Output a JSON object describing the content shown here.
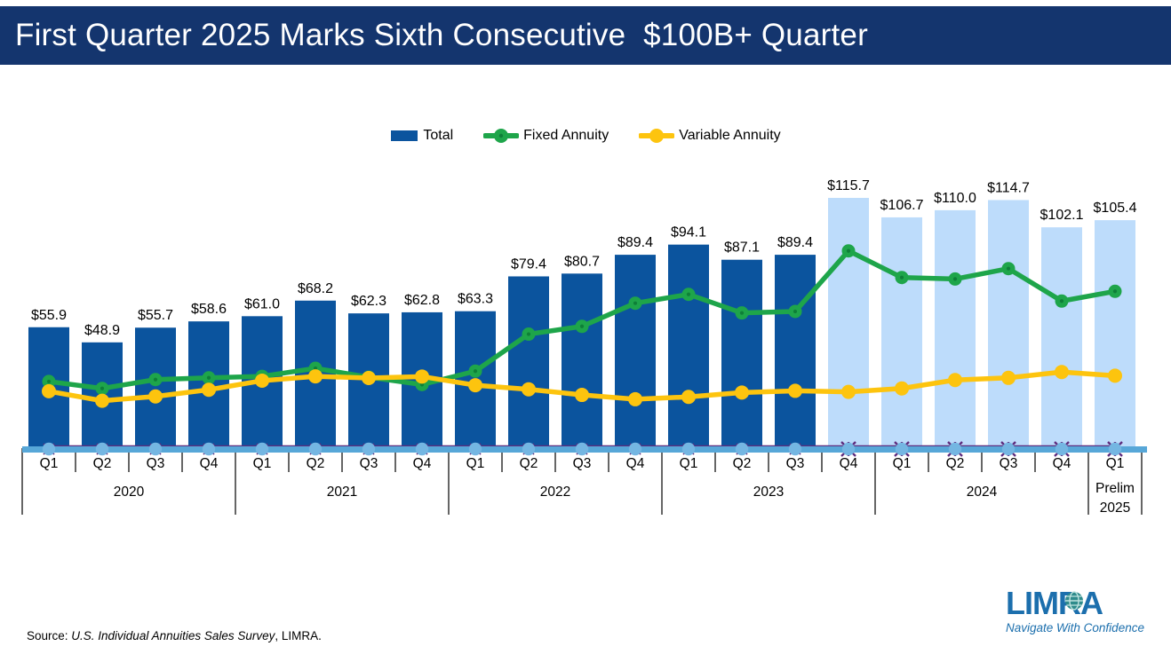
{
  "title_bar": {
    "title": "First Quarter 2025 Marks Sixth Consecutive  $100B+ Quarter"
  },
  "legend": {
    "items": [
      {
        "label": "Total",
        "color": "#0b549e",
        "marker": "bar-swatch"
      },
      {
        "label": "Fixed Annuity",
        "color": "#1ea54a",
        "marker": "line-dot"
      },
      {
        "label": "Variable Annuity",
        "color": "#fdc40e",
        "marker": "line-dot"
      }
    ]
  },
  "chart_data": {
    "type": "bar",
    "subtype": "bar+line combo, quarterly time series",
    "unit": "US$ billions",
    "ylim": [
      0,
      120
    ],
    "gridlines": false,
    "legend_position": "top-center",
    "x_groups": [
      {
        "label": "2020",
        "label_lines": [
          "2020"
        ],
        "quarters": [
          "Q1",
          "Q2",
          "Q3",
          "Q4"
        ]
      },
      {
        "label": "2021",
        "label_lines": [
          "2021"
        ],
        "quarters": [
          "Q1",
          "Q2",
          "Q3",
          "Q4"
        ]
      },
      {
        "label": "2022",
        "label_lines": [
          "2022"
        ],
        "quarters": [
          "Q1",
          "Q2",
          "Q3",
          "Q4"
        ]
      },
      {
        "label": "2023",
        "label_lines": [
          "2023"
        ],
        "quarters": [
          "Q1",
          "Q2",
          "Q3",
          "Q4"
        ]
      },
      {
        "label": "2024",
        "label_lines": [
          "2024"
        ],
        "quarters": [
          "Q1",
          "Q2",
          "Q3",
          "Q4"
        ]
      },
      {
        "label": "Prelim 2025",
        "label_lines": [
          "Prelim",
          "2025"
        ],
        "quarters": [
          "Q1"
        ]
      }
    ],
    "bars": {
      "name": "Total",
      "values": [
        55.9,
        48.9,
        55.7,
        58.6,
        61.0,
        68.2,
        62.3,
        62.8,
        63.3,
        79.4,
        80.7,
        89.4,
        94.1,
        87.1,
        89.4,
        115.7,
        106.7,
        110.0,
        114.7,
        102.1,
        105.4
      ],
      "labels": [
        "$55.9",
        "$48.9",
        "$55.7",
        "$58.6",
        "$61.0",
        "$68.2",
        "$62.3",
        "$62.8",
        "$63.3",
        "$79.4",
        "$80.7",
        "$89.4",
        "$94.1",
        "$87.1",
        "$89.4",
        "$115.7",
        "$106.7",
        "$110.0",
        "$114.7",
        "$102.1",
        "$105.4"
      ],
      "color_regular": "#0b549e",
      "color_highlight": "#bddcfb",
      "highlight_start_index": 15
    },
    "lines": [
      {
        "name": "Fixed Annuity",
        "color": "#1ea54a",
        "marker": "circle",
        "values_estimated_from_pixels": true,
        "values": [
          30.8,
          27.6,
          31.7,
          32.5,
          33.2,
          36.9,
          32.8,
          29.4,
          35.6,
          52.7,
          56.3,
          67.0,
          71.1,
          62.5,
          63.2,
          91.2,
          78.9,
          78.2,
          83.0,
          68.0,
          72.5
        ]
      },
      {
        "name": "Variable Annuity",
        "color": "#fdc40e",
        "marker": "circle",
        "values_estimated_from_pixels": true,
        "values": [
          26.3,
          21.9,
          23.9,
          27.0,
          31.2,
          33.2,
          32.4,
          33.1,
          29.1,
          27.2,
          24.6,
          22.6,
          23.7,
          25.7,
          26.5,
          26.0,
          27.6,
          31.5,
          32.5,
          35.2,
          33.5
        ]
      },
      {
        "name": "unlabeled-near-zero-line",
        "color": "#57a7d8",
        "marker": "circle",
        "marker_color": "#74b6e2",
        "marker_change": {
          "from_index": 15,
          "marker": "asterisk",
          "color": "#5e2d7e"
        },
        "values": [
          0.5,
          0.5,
          0.5,
          0.5,
          0.5,
          0.5,
          0.5,
          0.5,
          0.5,
          0.5,
          0.5,
          0.5,
          0.5,
          0.5,
          0.5,
          0.5,
          0.5,
          0.5,
          0.5,
          0.5,
          0.5
        ]
      },
      {
        "name": "unlabeled-flat-thin-line",
        "color": "#5e2d7e",
        "marker": "none",
        "values": [
          1.2,
          1.2,
          1.2,
          1.2,
          1.2,
          1.2,
          1.2,
          1.2,
          1.2,
          1.2,
          1.2,
          1.2,
          1.2,
          1.2,
          1.2,
          1.2,
          1.2,
          1.2,
          1.2,
          1.2,
          1.2
        ]
      }
    ]
  },
  "source": {
    "prefix": "Source: ",
    "survey": "U.S. Individual Annuities Sales Survey",
    "suffix": ", LIMRA."
  },
  "logo": {
    "wordmark": "LIMRA",
    "tagline": "Navigate With Confidence"
  }
}
